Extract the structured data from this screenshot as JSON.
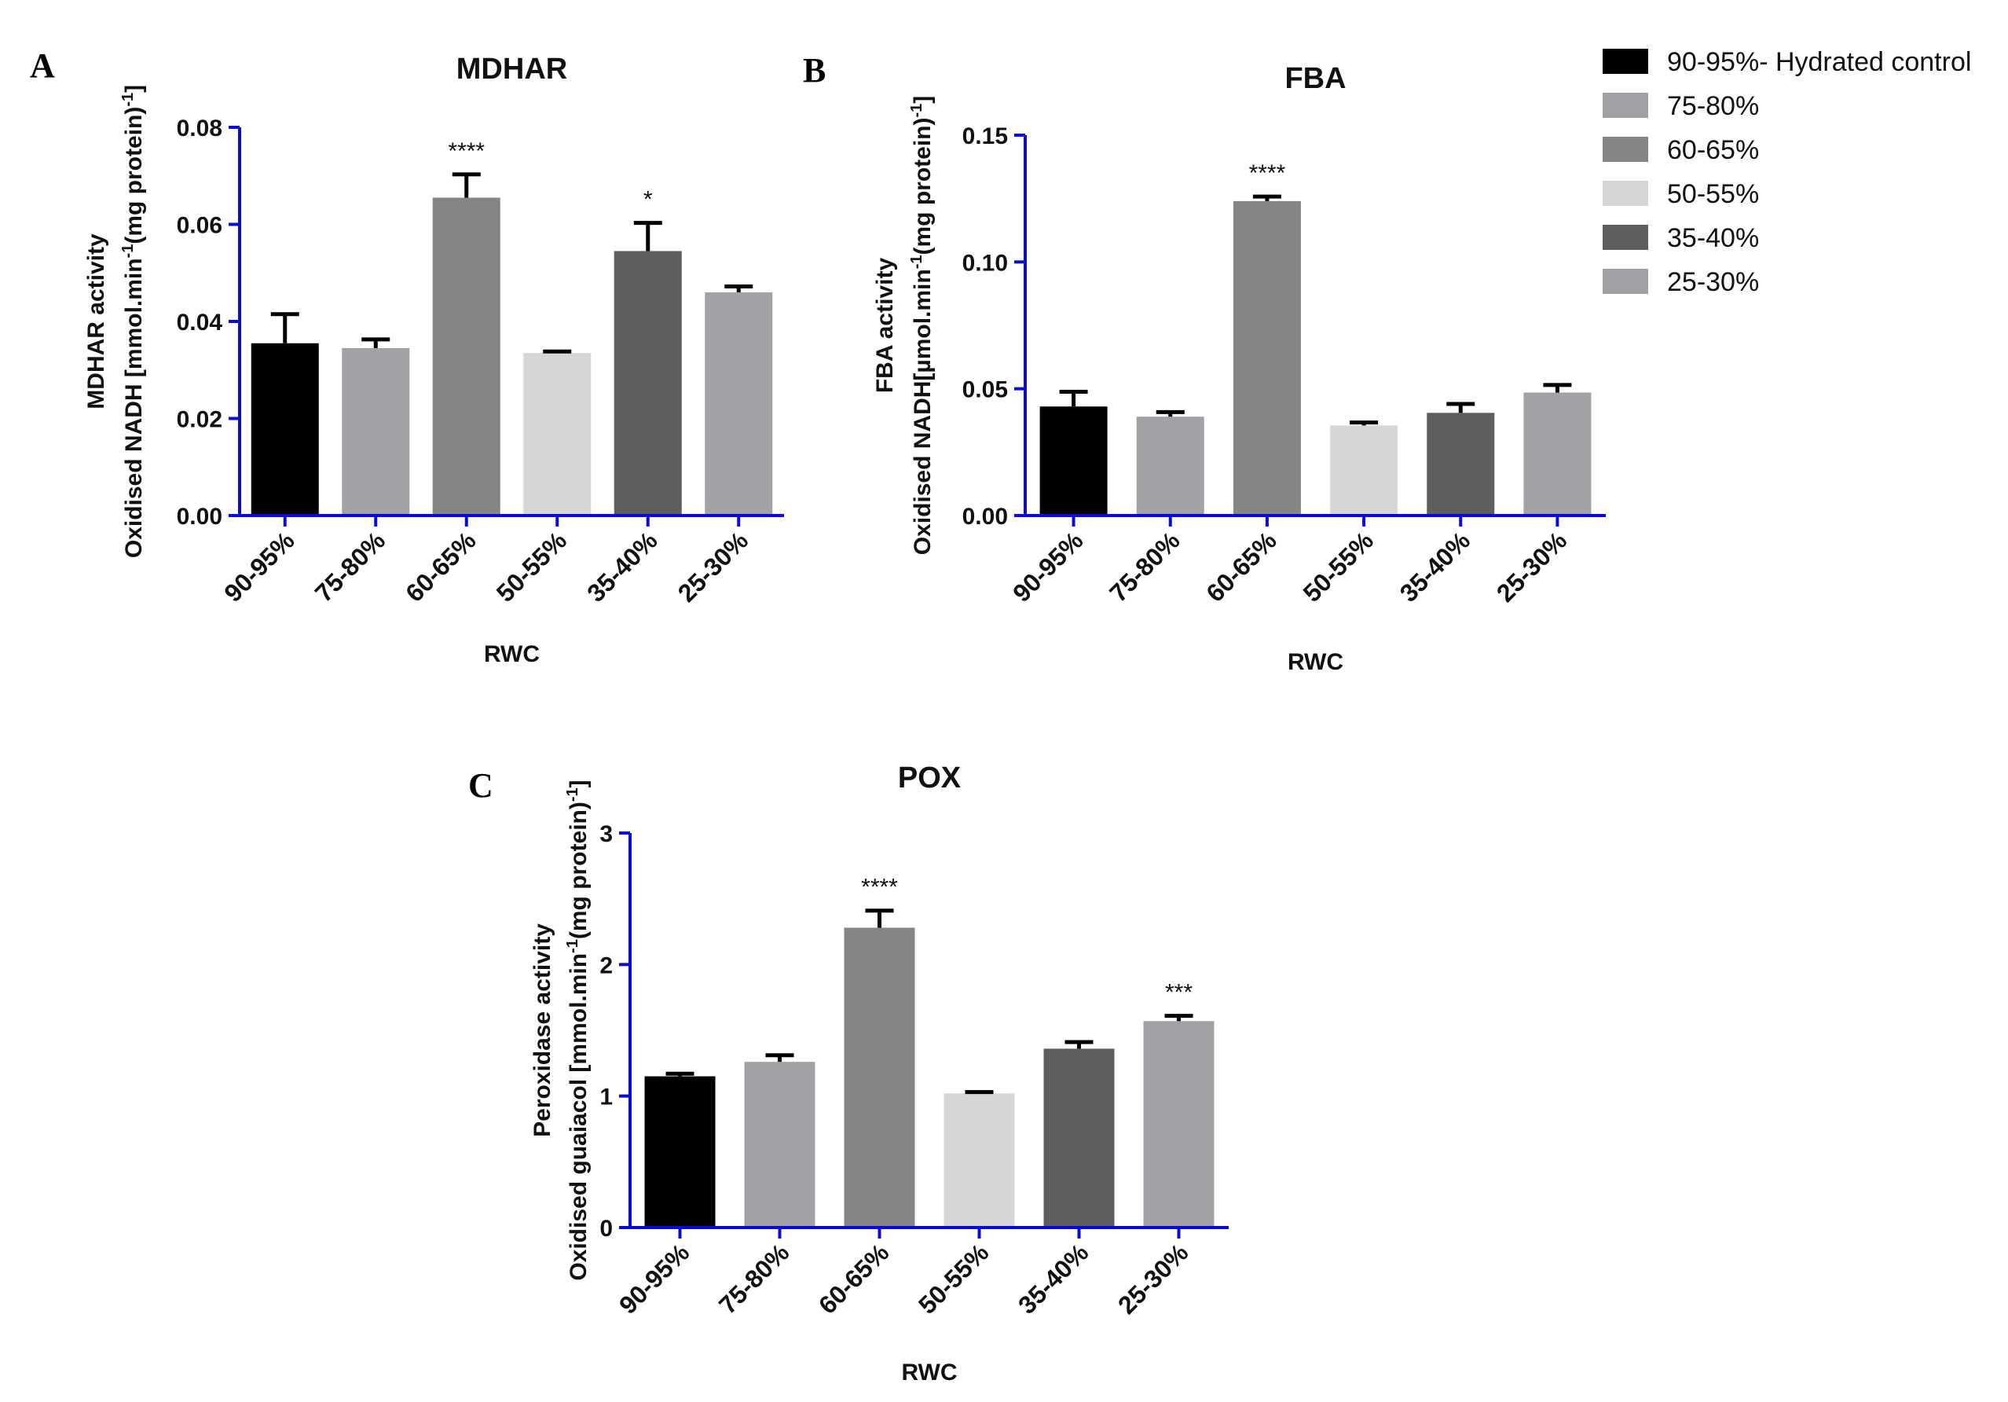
{
  "legend": {
    "entries": [
      {
        "label": "90-95%- Hydrated control",
        "color": "#000000"
      },
      {
        "label": "75-80%",
        "color": "#a3a1a6"
      },
      {
        "label": "60-65%",
        "color": "#858585"
      },
      {
        "label": "50-55%",
        "color": "#d6d6d6"
      },
      {
        "label": "35-40%",
        "color": "#5e5e5e"
      },
      {
        "label": "25-30%",
        "color": "#a3a1a6"
      }
    ]
  },
  "colors": {
    "axis": "#0a0ad8",
    "bars": [
      "#000000",
      "#a3a1a6",
      "#858585",
      "#d6d6d6",
      "#5e5e5e",
      "#a3a1a6"
    ]
  },
  "chart_data": [
    {
      "panel": "A",
      "type": "bar",
      "title": "MDHAR",
      "ylabel_lines": [
        "MDHAR activity",
        "Oxidised NADH [mmol.min",
        "-1",
        "(mg protein)",
        "-1",
        "]"
      ],
      "xlabel": "RWC",
      "categories": [
        "90-95%",
        "75-80%",
        "60-65%",
        "50-55%",
        "35-40%",
        "25-30%"
      ],
      "values": [
        0.0355,
        0.0345,
        0.0655,
        0.0335,
        0.0545,
        0.046
      ],
      "errors": [
        0.006,
        0.0018,
        0.0048,
        0.0003,
        0.0058,
        0.0012
      ],
      "significance": [
        "",
        "",
        "****",
        "",
        "*",
        ""
      ],
      "ylim": [
        0,
        0.08
      ],
      "yticks": [
        "0.00",
        "0.02",
        "0.04",
        "0.06",
        "0.08"
      ]
    },
    {
      "panel": "B",
      "type": "bar",
      "title": "FBA",
      "ylabel_lines": [
        "FBA activity",
        "Oxidised NADH[µmol.min",
        "-1",
        "(mg protein)",
        "-1",
        "]"
      ],
      "xlabel": "RWC",
      "categories": [
        "90-95%",
        "75-80%",
        "60-65%",
        "50-55%",
        "35-40%",
        "25-30%"
      ],
      "values": [
        0.043,
        0.039,
        0.124,
        0.0355,
        0.0405,
        0.0485
      ],
      "errors": [
        0.0058,
        0.0018,
        0.0018,
        0.0012,
        0.0035,
        0.003
      ],
      "significance": [
        "",
        "",
        "****",
        "",
        "",
        ""
      ],
      "ylim": [
        0,
        0.15
      ],
      "yticks": [
        "0.00",
        "0.05",
        "0.10",
        "0.15"
      ]
    },
    {
      "panel": "C",
      "type": "bar",
      "title": "POX",
      "ylabel_lines": [
        "Peroxidase activity",
        "Oxidised guaiacol [mmol.min",
        "-1",
        "(mg protein)",
        "-1",
        "]"
      ],
      "xlabel": "RWC",
      "categories": [
        "90-95%",
        "75-80%",
        "60-65%",
        "50-55%",
        "35-40%",
        "25-30%"
      ],
      "values": [
        1.15,
        1.26,
        2.28,
        1.02,
        1.36,
        1.57
      ],
      "errors": [
        0.02,
        0.05,
        0.13,
        0.01,
        0.05,
        0.04
      ],
      "significance": [
        "",
        "",
        "****",
        "",
        "",
        "***"
      ],
      "ylim": [
        0,
        3
      ],
      "yticks": [
        "0",
        "1",
        "2",
        "3"
      ]
    }
  ]
}
